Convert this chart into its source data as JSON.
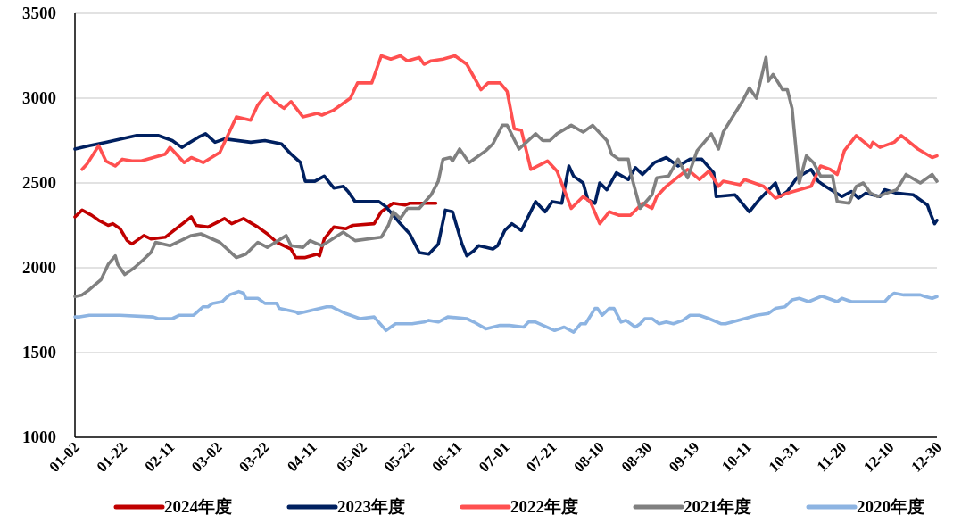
{
  "chart_data": {
    "type": "line",
    "xlim": [
      "--01-02",
      "--12-30"
    ],
    "xticks": [
      {
        "value": "--01-02",
        "label": "01-02"
      },
      {
        "value": "--01-22",
        "label": "01-22"
      },
      {
        "value": "--02-11",
        "label": "02-11"
      },
      {
        "value": "--03-02",
        "label": "03-02"
      },
      {
        "value": "--03-22",
        "label": "03-22"
      },
      {
        "value": "--04-11",
        "label": "04-11"
      },
      {
        "value": "--05-02",
        "label": "05-02"
      },
      {
        "value": "--05-22",
        "label": "05-22"
      },
      {
        "value": "--06-11",
        "label": "06-11"
      },
      {
        "value": "--07-01",
        "label": "07-01"
      },
      {
        "value": "--07-21",
        "label": "07-21"
      },
      {
        "value": "--08-10",
        "label": "08-10"
      },
      {
        "value": "--08-30",
        "label": "08-30"
      },
      {
        "value": "--09-19",
        "label": "09-19"
      },
      {
        "value": "--10-11",
        "label": "10-11"
      },
      {
        "value": "--10-31",
        "label": "10-31"
      },
      {
        "value": "--11-20",
        "label": "11-20"
      },
      {
        "value": "--12-10",
        "label": "12-10"
      },
      {
        "value": "--12-30",
        "label": "12-30"
      }
    ],
    "ylim": [
      1000,
      3500
    ],
    "yticks": [
      1000,
      1500,
      2000,
      2500,
      3000,
      3500
    ],
    "grid": "y",
    "legend": "bottom",
    "series": [
      {
        "name": "2024年度",
        "color": "#c00000",
        "x": [
          "--01-02",
          "--01-05",
          "--01-09",
          "--01-12",
          "--01-16",
          "--01-18",
          "--01-21",
          "--01-24",
          "--01-26",
          "--01-31",
          "--02-03",
          "--02-09",
          "--02-20",
          "--02-22",
          "--02-27",
          "--03-05",
          "--03-08",
          "--03-13",
          "--03-19",
          "--03-23",
          "--03-27",
          "--04-02",
          "--04-04",
          "--04-08",
          "--04-13",
          "--04-14",
          "--04-16",
          "--04-20",
          "--04-25",
          "--04-28",
          "--05-07",
          "--05-10",
          "--05-15",
          "--05-20",
          "--05-22",
          "--06-02"
        ],
        "values": [
          2300,
          2340,
          2310,
          2280,
          2250,
          2260,
          2230,
          2160,
          2140,
          2190,
          2170,
          2180,
          2300,
          2250,
          2240,
          2290,
          2260,
          2290,
          2240,
          2200,
          2150,
          2110,
          2060,
          2060,
          2080,
          2070,
          2170,
          2240,
          2230,
          2250,
          2260,
          2330,
          2380,
          2370,
          2380,
          2380
        ]
      },
      {
        "name": "2023年度",
        "color": "#002060",
        "x": [
          "--01-02",
          "--01-08",
          "--01-15",
          "--01-28",
          "--02-06",
          "--02-12",
          "--02-16",
          "--02-23",
          "--02-26",
          "--03-01",
          "--03-05",
          "--03-16",
          "--03-22",
          "--03-29",
          "--04-02",
          "--04-06",
          "--04-08",
          "--04-12",
          "--04-16",
          "--04-20",
          "--04-24",
          "--04-26",
          "--04-29",
          "--05-09",
          "--05-12",
          "--05-18",
          "--05-22",
          "--05-26",
          "--05-30",
          "--06-03",
          "--06-06",
          "--06-09",
          "--06-13",
          "--06-15",
          "--06-18",
          "--06-20",
          "--06-26",
          "--06-28",
          "--07-01",
          "--07-04",
          "--07-08",
          "--07-14",
          "--07-18",
          "--07-21",
          "--07-25",
          "--07-28",
          "--07-30",
          "--08-03",
          "--08-05",
          "--08-08",
          "--08-10",
          "--08-13",
          "--08-17",
          "--08-22",
          "--08-25",
          "--08-28",
          "--09-02",
          "--09-07",
          "--09-12",
          "--09-17",
          "--09-22",
          "--09-27",
          "--09-28",
          "--10-06",
          "--10-12",
          "--10-16",
          "--10-23",
          "--10-25",
          "--10-28",
          "--11-01",
          "--11-07",
          "--11-10",
          "--11-13",
          "--11-20",
          "--11-24",
          "--11-27",
          "--11-30",
          "--12-06",
          "--12-08",
          "--12-13",
          "--12-20",
          "--12-26",
          "--12-27",
          "--12-29",
          "--12-30"
        ],
        "values": [
          2700,
          2720,
          2740,
          2780,
          2780,
          2750,
          2710,
          2770,
          2790,
          2740,
          2760,
          2740,
          2750,
          2730,
          2670,
          2620,
          2510,
          2510,
          2540,
          2470,
          2480,
          2450,
          2390,
          2390,
          2360,
          2260,
          2200,
          2090,
          2080,
          2140,
          2340,
          2330,
          2140,
          2070,
          2100,
          2130,
          2110,
          2130,
          2220,
          2260,
          2220,
          2390,
          2330,
          2390,
          2380,
          2600,
          2540,
          2500,
          2400,
          2380,
          2500,
          2460,
          2560,
          2520,
          2590,
          2550,
          2620,
          2650,
          2600,
          2640,
          2640,
          2560,
          2420,
          2430,
          2330,
          2400,
          2500,
          2420,
          2450,
          2530,
          2580,
          2510,
          2480,
          2420,
          2450,
          2410,
          2440,
          2420,
          2460,
          2440,
          2430,
          2370,
          2330,
          2260,
          2280
        ]
      },
      {
        "name": "2022年度",
        "color": "#ff5050",
        "x": [
          "--01-05",
          "--01-07",
          "--01-12",
          "--01-15",
          "--01-19",
          "--01-22",
          "--01-26",
          "--01-30",
          "--02-09",
          "--02-11",
          "--02-17",
          "--02-20",
          "--02-25",
          "--03-03",
          "--03-10",
          "--03-16",
          "--03-19",
          "--03-23",
          "--03-26",
          "--03-30",
          "--04-02",
          "--04-07",
          "--04-13",
          "--04-15",
          "--04-20",
          "--04-27",
          "--04-30",
          "--05-06",
          "--05-10",
          "--05-14",
          "--05-18",
          "--05-21",
          "--05-26",
          "--05-28",
          "--05-31",
          "--06-05",
          "--06-10",
          "--06-15",
          "--06-21",
          "--06-24",
          "--06-29",
          "--07-02",
          "--07-05",
          "--07-08",
          "--07-12",
          "--07-19",
          "--07-23",
          "--07-29",
          "--08-03",
          "--08-06",
          "--08-10",
          "--08-14",
          "--08-18",
          "--08-23",
          "--08-28",
          "--09-01",
          "--09-03",
          "--09-07",
          "--09-16",
          "--09-21",
          "--09-25",
          "--09-29",
          "--10-01",
          "--10-08",
          "--10-10",
          "--10-18",
          "--10-23",
          "--10-28",
          "--11-07",
          "--11-11",
          "--11-15",
          "--11-18",
          "--11-21",
          "--11-26",
          "--12-02",
          "--12-03",
          "--12-06",
          "--12-12",
          "--12-15",
          "--12-22",
          "--12-28",
          "--12-30"
        ],
        "values": [
          2580,
          2610,
          2720,
          2630,
          2600,
          2640,
          2630,
          2630,
          2670,
          2710,
          2620,
          2650,
          2620,
          2680,
          2890,
          2870,
          2960,
          3030,
          2980,
          2940,
          2980,
          2890,
          2910,
          2900,
          2930,
          3000,
          3090,
          3090,
          3250,
          3230,
          3250,
          3220,
          3240,
          3200,
          3220,
          3230,
          3250,
          3200,
          3050,
          3090,
          3090,
          3040,
          2820,
          2810,
          2580,
          2630,
          2570,
          2350,
          2420,
          2390,
          2260,
          2330,
          2310,
          2310,
          2380,
          2350,
          2420,
          2480,
          2580,
          2520,
          2570,
          2480,
          2510,
          2490,
          2520,
          2480,
          2410,
          2440,
          2480,
          2600,
          2580,
          2550,
          2690,
          2780,
          2710,
          2740,
          2710,
          2740,
          2780,
          2700,
          2650,
          2660
        ]
      },
      {
        "name": "2021年度",
        "color": "#808080",
        "x": [
          "--01-02",
          "--01-05",
          "--01-08",
          "--01-13",
          "--01-16",
          "--01-19",
          "--01-20",
          "--01-23",
          "--01-27",
          "--01-31",
          "--02-03",
          "--02-05",
          "--02-11",
          "--02-20",
          "--02-24",
          "--03-03",
          "--03-10",
          "--03-14",
          "--03-19",
          "--03-23",
          "--03-31",
          "--04-02",
          "--04-07",
          "--04-10",
          "--04-15",
          "--04-24",
          "--04-29",
          "--05-10",
          "--05-13",
          "--05-15",
          "--05-18",
          "--05-21",
          "--05-26",
          "--05-31",
          "--06-03",
          "--06-05",
          "--06-08",
          "--06-09",
          "--06-12",
          "--06-16",
          "--06-19",
          "--06-23",
          "--06-26",
          "--06-30",
          "--07-02",
          "--07-07",
          "--07-14",
          "--07-17",
          "--07-20",
          "--07-23",
          "--07-29",
          "--08-03",
          "--08-07",
          "--08-13",
          "--08-15",
          "--08-18",
          "--08-22",
          "--08-23",
          "--08-27",
          "--09-01",
          "--09-03",
          "--09-08",
          "--09-12",
          "--09-16",
          "--09-20",
          "--09-26",
          "--09-29",
          "--10-01",
          "--10-09",
          "--10-12",
          "--10-15",
          "--10-19",
          "--10-20",
          "--10-22",
          "--10-26",
          "--10-28",
          "--10-30",
          "--11-02",
          "--11-05",
          "--11-08",
          "--11-11",
          "--11-16",
          "--11-18",
          "--11-23",
          "--11-26",
          "--11-29",
          "--12-02",
          "--12-05",
          "--12-09",
          "--12-13",
          "--12-17",
          "--12-23",
          "--12-28",
          "--12-30"
        ],
        "values": [
          1830,
          1840,
          1870,
          1930,
          2020,
          2070,
          2020,
          1960,
          2000,
          2050,
          2090,
          2150,
          2130,
          2190,
          2200,
          2150,
          2060,
          2080,
          2150,
          2120,
          2190,
          2130,
          2120,
          2160,
          2130,
          2210,
          2160,
          2180,
          2250,
          2330,
          2290,
          2350,
          2350,
          2430,
          2510,
          2640,
          2650,
          2630,
          2700,
          2620,
          2650,
          2690,
          2730,
          2840,
          2840,
          2700,
          2790,
          2750,
          2750,
          2790,
          2840,
          2800,
          2840,
          2750,
          2670,
          2640,
          2640,
          2560,
          2350,
          2430,
          2530,
          2540,
          2640,
          2530,
          2690,
          2790,
          2700,
          2800,
          2980,
          3060,
          3000,
          3240,
          3100,
          3140,
          3050,
          3050,
          2940,
          2500,
          2660,
          2620,
          2540,
          2540,
          2390,
          2380,
          2480,
          2500,
          2440,
          2420,
          2440,
          2460,
          2550,
          2500,
          2550,
          2510
        ]
      },
      {
        "name": "2020年度",
        "color": "#8db4e2",
        "x": [
          "--01-02",
          "--01-04",
          "--01-08",
          "--01-19",
          "--01-21",
          "--02-04",
          "--02-06",
          "--02-12",
          "--02-15",
          "--02-21",
          "--02-25",
          "--02-27",
          "--02-29",
          "--03-04",
          "--03-07",
          "--03-11",
          "--03-13",
          "--03-14",
          "--03-19",
          "--03-22",
          "--03-27",
          "--03-28",
          "--04-04",
          "--04-05",
          "--04-11",
          "--04-17",
          "--04-19",
          "--04-25",
          "--05-01",
          "--05-07",
          "--05-12",
          "--05-16",
          "--05-18",
          "--05-21",
          "--05-23",
          "--05-28",
          "--05-30",
          "--06-03",
          "--06-07",
          "--06-15",
          "--06-18",
          "--06-23",
          "--06-29",
          "--07-03",
          "--07-09",
          "--07-11",
          "--07-14",
          "--07-22",
          "--07-26",
          "--07-30",
          "--08-02",
          "--08-04",
          "--08-08",
          "--08-09",
          "--08-11",
          "--08-14",
          "--08-16",
          "--08-19",
          "--08-21",
          "--08-25",
          "--08-27",
          "--08-29",
          "--09-01",
          "--09-04",
          "--09-07",
          "--09-10",
          "--09-14",
          "--09-17",
          "--09-21",
          "--09-25",
          "--09-30",
          "--10-02",
          "--10-10",
          "--10-15",
          "--10-20",
          "--10-23",
          "--10-27",
          "--10-30",
          "--11-02",
          "--11-06",
          "--11-11",
          "--11-12",
          "--11-18",
          "--11-20",
          "--11-24",
          "--11-27",
          "--12-01",
          "--12-08",
          "--12-10",
          "--12-12",
          "--12-16",
          "--12-23",
          "--12-25",
          "--12-28",
          "--12-30"
        ],
        "values": [
          1710,
          1710,
          1720,
          1720,
          1720,
          1710,
          1700,
          1700,
          1720,
          1720,
          1770,
          1770,
          1790,
          1800,
          1840,
          1860,
          1850,
          1820,
          1820,
          1790,
          1790,
          1760,
          1740,
          1730,
          1750,
          1770,
          1770,
          1730,
          1700,
          1710,
          1630,
          1670,
          1670,
          1670,
          1670,
          1680,
          1690,
          1680,
          1710,
          1700,
          1680,
          1640,
          1660,
          1660,
          1650,
          1680,
          1680,
          1630,
          1650,
          1620,
          1670,
          1670,
          1760,
          1760,
          1720,
          1760,
          1760,
          1680,
          1690,
          1650,
          1670,
          1700,
          1700,
          1670,
          1680,
          1670,
          1690,
          1720,
          1720,
          1700,
          1670,
          1670,
          1700,
          1720,
          1730,
          1760,
          1770,
          1810,
          1820,
          1800,
          1830,
          1830,
          1800,
          1820,
          1800,
          1800,
          1800,
          1800,
          1830,
          1850,
          1840,
          1840,
          1830,
          1820,
          1830
        ]
      }
    ]
  }
}
